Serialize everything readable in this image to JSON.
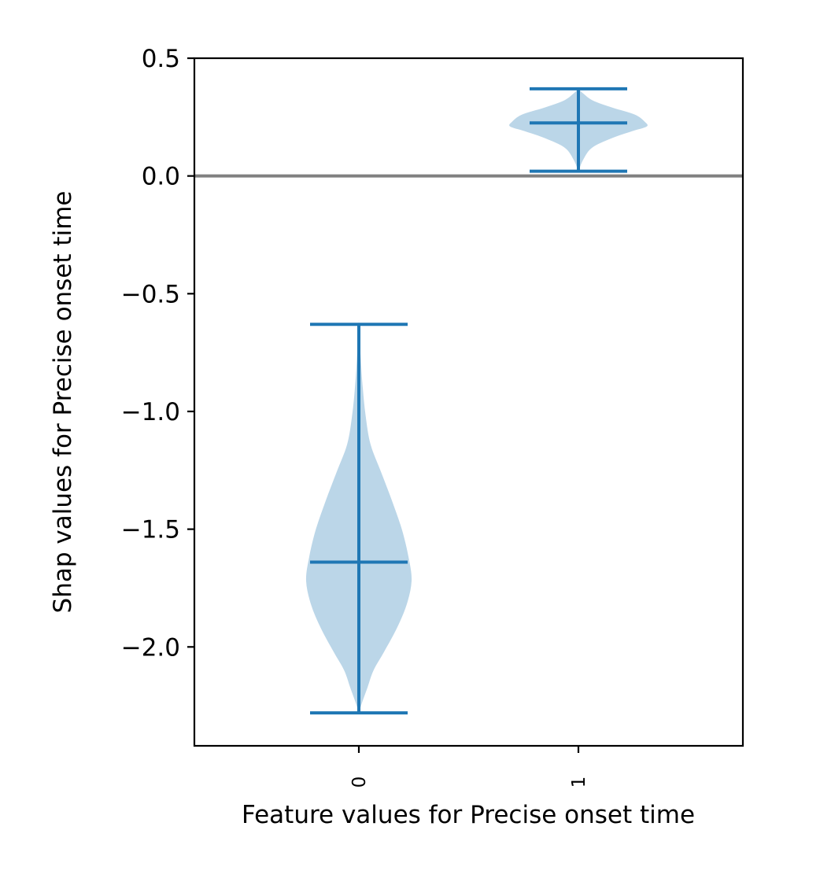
{
  "chart_data": {
    "type": "violin",
    "xlabel": "Feature values for Precise onset time",
    "ylabel": "Shap values for Precise onset time",
    "categories": [
      "0",
      "1"
    ],
    "ylim": [
      -2.42,
      0.5
    ],
    "yticks": [
      0.5,
      0.0,
      -0.5,
      -1.0,
      -1.5,
      -2.0
    ],
    "ytick_labels": [
      "0.5",
      "0.0",
      "−0.5",
      "−1.0",
      "−1.5",
      "−2.0"
    ],
    "reference_line": 0.0,
    "violins": [
      {
        "category": "0",
        "min": -2.28,
        "max": -0.63,
        "median": -1.64,
        "density_profile": [
          [
            -2.28,
            0.0
          ],
          [
            -2.24,
            0.03
          ],
          [
            -2.17,
            0.09
          ],
          [
            -2.1,
            0.15
          ],
          [
            -2.02,
            0.26
          ],
          [
            -1.92,
            0.39
          ],
          [
            -1.82,
            0.49
          ],
          [
            -1.72,
            0.54
          ],
          [
            -1.62,
            0.51
          ],
          [
            -1.5,
            0.44
          ],
          [
            -1.38,
            0.34
          ],
          [
            -1.26,
            0.23
          ],
          [
            -1.14,
            0.12
          ],
          [
            -1.02,
            0.07
          ],
          [
            -0.9,
            0.04
          ],
          [
            -0.78,
            0.02
          ],
          [
            -0.63,
            0.0
          ]
        ]
      },
      {
        "category": "1",
        "min": 0.02,
        "max": 0.37,
        "median": 0.225,
        "density_profile": [
          [
            0.02,
            0.0
          ],
          [
            0.07,
            0.05
          ],
          [
            0.12,
            0.14
          ],
          [
            0.16,
            0.34
          ],
          [
            0.19,
            0.55
          ],
          [
            0.21,
            0.7
          ],
          [
            0.23,
            0.68
          ],
          [
            0.26,
            0.58
          ],
          [
            0.29,
            0.35
          ],
          [
            0.32,
            0.15
          ],
          [
            0.35,
            0.05
          ],
          [
            0.37,
            0.0
          ]
        ]
      }
    ],
    "colors": {
      "violin_fill": "#1f77b4",
      "whisker_line": "#1f77b4",
      "reference_line": "#808080"
    }
  }
}
